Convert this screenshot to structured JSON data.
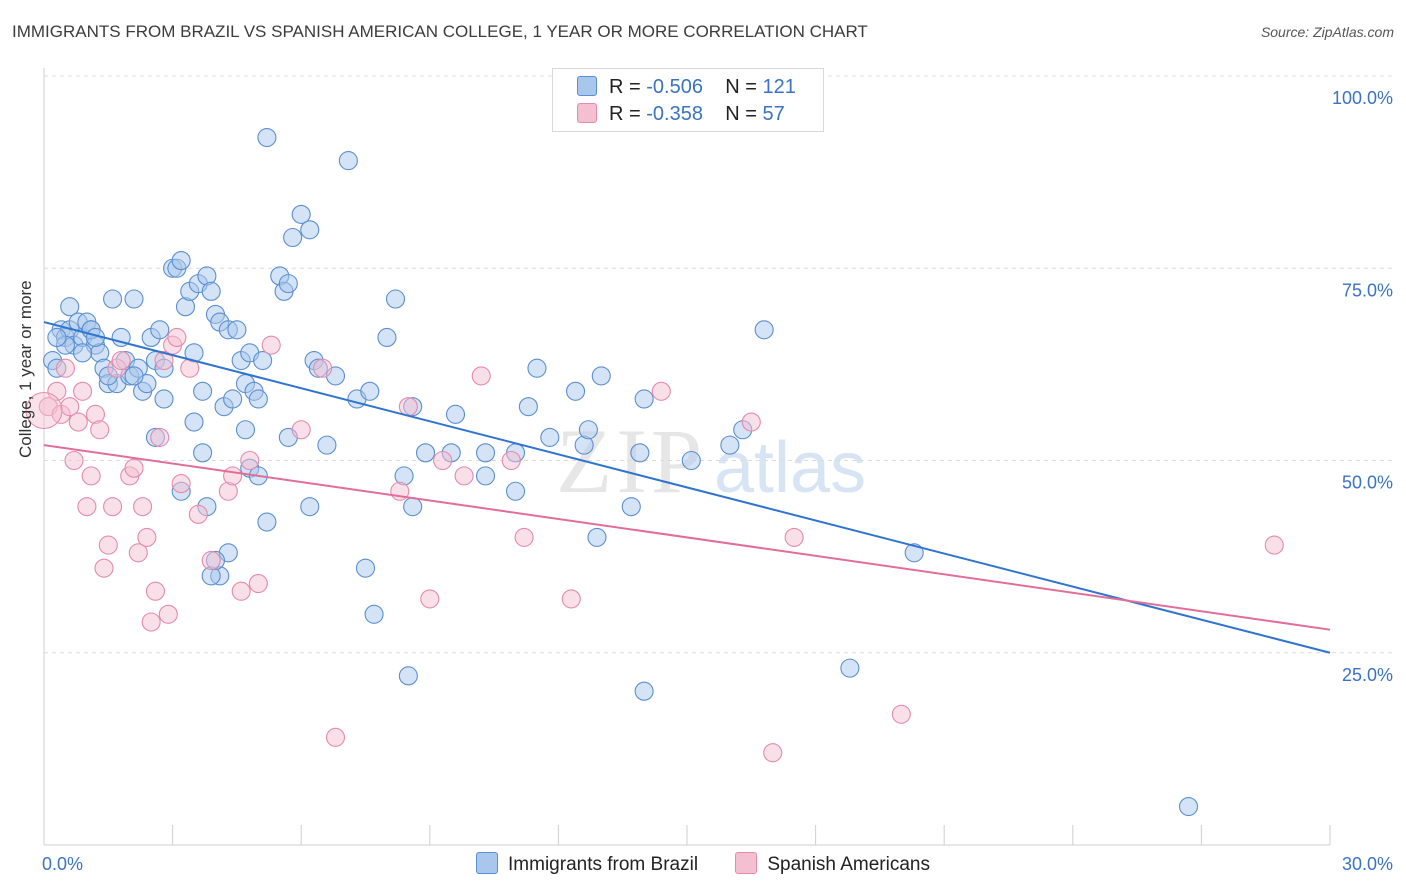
{
  "header": {
    "title": "IMMIGRANTS FROM BRAZIL VS SPANISH AMERICAN COLLEGE, 1 YEAR OR MORE CORRELATION CHART",
    "source": "Source: ZipAtlas.com"
  },
  "legend": {
    "rows": [
      {
        "r_label": "R = ",
        "r_value": "-0.506",
        "n_label": "N = ",
        "n_value": "121"
      },
      {
        "r_label": "R = ",
        "r_value": "-0.358",
        "n_label": "N = ",
        "n_value": "57"
      }
    ]
  },
  "watermark": {
    "zip": "ZIP",
    "atlas": "atlas"
  },
  "colors": {
    "blue_fill": "#a9c7ec",
    "blue_stroke": "#5b8fd1",
    "blue_line": "#2f74d0",
    "pink_fill": "#f4bfd1",
    "pink_stroke": "#e58aac",
    "pink_line": "#e26e98",
    "tick_label": "#3a72c4",
    "grid": "#dcdcdc"
  },
  "chart_data": {
    "type": "scatter",
    "title": "IMMIGRANTS FROM BRAZIL VS SPANISH AMERICAN COLLEGE, 1 YEAR OR MORE CORRELATION CHART",
    "xlabel": "",
    "ylabel": "College, 1 year or more",
    "xlim": [
      0,
      30
    ],
    "ylim": [
      0,
      100
    ],
    "x_tick_labels": [
      "0.0%",
      "30.0%"
    ],
    "y_ticks": [
      25,
      50,
      75,
      100
    ],
    "y_tick_labels": [
      "25.0%",
      "50.0%",
      "75.0%",
      "100.0%"
    ],
    "grid": true,
    "legend_position": "bottom",
    "series": [
      {
        "name": "Immigrants from Brazil",
        "trend": [
          [
            0,
            68
          ],
          [
            30,
            25
          ]
        ],
        "points": [
          [
            0.2,
            63
          ],
          [
            0.3,
            62
          ],
          [
            0.4,
            67
          ],
          [
            0.5,
            66
          ],
          [
            0.6,
            70
          ],
          [
            0.6,
            67
          ],
          [
            0.7,
            65
          ],
          [
            0.8,
            68
          ],
          [
            0.9,
            66
          ],
          [
            1.0,
            68
          ],
          [
            1.1,
            67
          ],
          [
            1.2,
            65
          ],
          [
            1.3,
            64
          ],
          [
            1.4,
            62
          ],
          [
            1.5,
            60
          ],
          [
            1.6,
            71
          ],
          [
            1.7,
            60
          ],
          [
            1.8,
            66
          ],
          [
            1.9,
            63
          ],
          [
            2.0,
            61
          ],
          [
            2.1,
            71
          ],
          [
            2.2,
            62
          ],
          [
            2.3,
            59
          ],
          [
            2.4,
            60
          ],
          [
            2.5,
            66
          ],
          [
            2.6,
            63
          ],
          [
            2.7,
            67
          ],
          [
            2.8,
            62
          ],
          [
            3.0,
            75
          ],
          [
            3.1,
            75
          ],
          [
            3.2,
            76
          ],
          [
            3.3,
            70
          ],
          [
            3.4,
            72
          ],
          [
            3.5,
            64
          ],
          [
            3.6,
            73
          ],
          [
            3.7,
            59
          ],
          [
            3.8,
            74
          ],
          [
            3.9,
            72
          ],
          [
            4.0,
            69
          ],
          [
            4.1,
            68
          ],
          [
            4.2,
            57
          ],
          [
            4.3,
            67
          ],
          [
            4.4,
            58
          ],
          [
            4.5,
            67
          ],
          [
            4.6,
            63
          ],
          [
            4.7,
            60
          ],
          [
            4.8,
            64
          ],
          [
            4.9,
            59
          ],
          [
            5.0,
            58
          ],
          [
            5.1,
            63
          ],
          [
            5.2,
            92
          ],
          [
            5.5,
            74
          ],
          [
            5.6,
            72
          ],
          [
            5.7,
            73
          ],
          [
            5.8,
            79
          ],
          [
            6.0,
            82
          ],
          [
            6.2,
            80
          ],
          [
            6.3,
            63
          ],
          [
            6.4,
            62
          ],
          [
            7.1,
            89
          ],
          [
            7.3,
            58
          ],
          [
            7.6,
            59
          ],
          [
            8.0,
            66
          ],
          [
            8.2,
            71
          ],
          [
            8.6,
            57
          ],
          [
            8.9,
            51
          ],
          [
            9.5,
            51
          ],
          [
            10.3,
            51
          ],
          [
            11.0,
            51
          ],
          [
            11.3,
            57
          ],
          [
            11.5,
            62
          ],
          [
            12.4,
            59
          ],
          [
            12.6,
            52
          ],
          [
            12.7,
            54
          ],
          [
            13.0,
            61
          ],
          [
            13.7,
            44
          ],
          [
            13.9,
            51
          ],
          [
            14.0,
            58
          ],
          [
            15.1,
            50
          ],
          [
            16.0,
            52
          ],
          [
            16.3,
            54
          ],
          [
            16.8,
            67
          ],
          [
            18.8,
            23
          ],
          [
            20.3,
            38
          ],
          [
            26.7,
            5
          ],
          [
            4.8,
            49
          ],
          [
            6.6,
            52
          ],
          [
            8.4,
            48
          ],
          [
            10.3,
            48
          ],
          [
            11.0,
            46
          ],
          [
            3.2,
            46
          ],
          [
            3.8,
            44
          ],
          [
            5.2,
            42
          ],
          [
            6.2,
            44
          ],
          [
            7.5,
            36
          ],
          [
            7.7,
            30
          ],
          [
            8.5,
            22
          ],
          [
            12.9,
            40
          ],
          [
            14.0,
            20
          ],
          [
            4.3,
            38
          ],
          [
            4.1,
            35
          ],
          [
            3.9,
            35
          ],
          [
            4.0,
            37
          ],
          [
            5.7,
            53
          ],
          [
            8.6,
            44
          ],
          [
            2.6,
            53
          ],
          [
            3.7,
            51
          ],
          [
            1.1,
            67
          ],
          [
            0.5,
            65
          ],
          [
            0.9,
            64
          ],
          [
            1.5,
            61
          ],
          [
            2.1,
            61
          ],
          [
            0.3,
            66
          ],
          [
            1.2,
            66
          ],
          [
            2.8,
            58
          ],
          [
            3.5,
            55
          ],
          [
            4.7,
            54
          ],
          [
            6.8,
            61
          ],
          [
            9.6,
            56
          ],
          [
            11.8,
            53
          ],
          [
            5.0,
            48
          ]
        ]
      },
      {
        "name": "Spanish Americans",
        "trend": [
          [
            0,
            52
          ],
          [
            30,
            28
          ]
        ],
        "points": [
          [
            0.1,
            57
          ],
          [
            0.3,
            59
          ],
          [
            0.4,
            56
          ],
          [
            0.5,
            62
          ],
          [
            0.6,
            57
          ],
          [
            0.7,
            50
          ],
          [
            0.8,
            55
          ],
          [
            0.9,
            59
          ],
          [
            1.0,
            44
          ],
          [
            1.1,
            48
          ],
          [
            1.2,
            56
          ],
          [
            1.3,
            54
          ],
          [
            1.4,
            36
          ],
          [
            1.5,
            39
          ],
          [
            1.6,
            44
          ],
          [
            1.7,
            62
          ],
          [
            1.8,
            63
          ],
          [
            2.0,
            48
          ],
          [
            2.1,
            49
          ],
          [
            2.2,
            38
          ],
          [
            2.3,
            44
          ],
          [
            2.4,
            40
          ],
          [
            2.5,
            29
          ],
          [
            2.6,
            33
          ],
          [
            2.7,
            53
          ],
          [
            2.8,
            63
          ],
          [
            2.9,
            30
          ],
          [
            3.0,
            65
          ],
          [
            3.1,
            66
          ],
          [
            3.2,
            47
          ],
          [
            3.4,
            62
          ],
          [
            3.6,
            43
          ],
          [
            3.9,
            37
          ],
          [
            4.3,
            46
          ],
          [
            4.4,
            48
          ],
          [
            4.6,
            33
          ],
          [
            4.8,
            50
          ],
          [
            5.0,
            34
          ],
          [
            5.3,
            65
          ],
          [
            6.0,
            54
          ],
          [
            6.5,
            62
          ],
          [
            6.8,
            14
          ],
          [
            8.3,
            46
          ],
          [
            8.5,
            57
          ],
          [
            9.0,
            32
          ],
          [
            9.3,
            50
          ],
          [
            9.8,
            48
          ],
          [
            10.2,
            61
          ],
          [
            10.9,
            50
          ],
          [
            11.2,
            40
          ],
          [
            12.3,
            32
          ],
          [
            14.4,
            59
          ],
          [
            16.5,
            55
          ],
          [
            17.0,
            12
          ],
          [
            17.5,
            40
          ],
          [
            20.0,
            17
          ],
          [
            28.7,
            39
          ]
        ]
      }
    ]
  }
}
